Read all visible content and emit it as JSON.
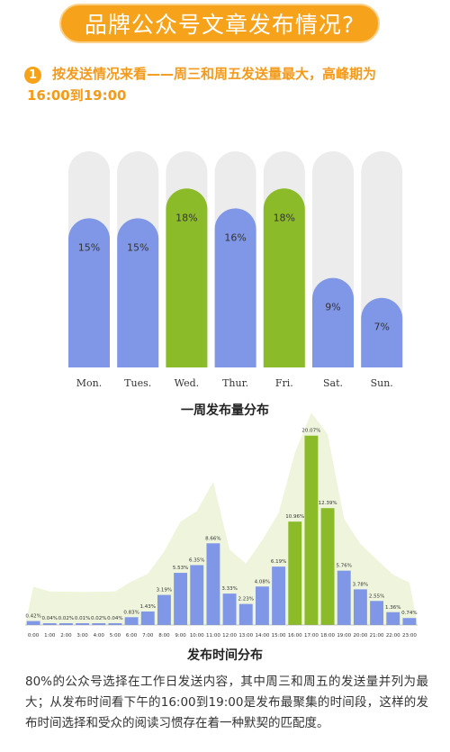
{
  "header": {
    "title": "品牌公众号文章发布情况?"
  },
  "section": {
    "number": "1",
    "line1": "按发送情况来看——周三和周五发送量最大，高峰期为",
    "line2": "16:00到19:00"
  },
  "colors": {
    "blue": "#7f97e6",
    "green": "#8cbb2a",
    "track": "#ececec",
    "area": "#eef5dc",
    "orange": "#f7a21b"
  },
  "chart_data": [
    {
      "type": "bar",
      "title": "一周发布量分布",
      "categories": [
        "Mon.",
        "Tues.",
        "Wed.",
        "Thur.",
        "Fri.",
        "Sat.",
        "Sun."
      ],
      "values": [
        15,
        15,
        18,
        16,
        18,
        9,
        7
      ],
      "labels": [
        "15%",
        "15%",
        "18%",
        "16%",
        "18%",
        "9%",
        "7%"
      ],
      "highlight": [
        "Wed.",
        "Fri."
      ],
      "ylim": [
        0,
        20
      ]
    },
    {
      "type": "bar",
      "title": "发布时间分布",
      "categories": [
        "0:00",
        "1:00",
        "2:00",
        "3:00",
        "4:00",
        "5:00",
        "6:00",
        "7:00",
        "8:00",
        "9:00",
        "10:00",
        "11:00",
        "12:00",
        "13:00",
        "14:00",
        "15:00",
        "16:00",
        "17:00",
        "18:00",
        "19:00",
        "20:00",
        "21:00",
        "22:00",
        "23:00"
      ],
      "values": [
        0.42,
        0.04,
        0.02,
        0.01,
        0.02,
        0.04,
        0.83,
        1.43,
        3.19,
        5.53,
        6.35,
        8.66,
        3.33,
        2.23,
        4.08,
        6.19,
        10.96,
        20.07,
        12.39,
        5.76,
        3.78,
        2.55,
        1.36,
        0.74
      ],
      "labels": [
        "0.42%",
        "0.04%",
        "0.02%",
        "0.01%",
        "0.02%",
        "0.04%",
        "0.83%",
        "1.43%",
        "3.19%",
        "5.53%",
        "6.35%",
        "8.66%",
        "3.33%",
        "2.23%",
        "4.08%",
        "6.19%",
        "10.96%",
        "20.07%",
        "12.39%",
        "5.76%",
        "3.78%",
        "2.55%",
        "1.36%",
        "0.74%"
      ],
      "highlight": [
        "16:00",
        "17:00",
        "18:00"
      ],
      "ylim": [
        0,
        21
      ]
    }
  ],
  "footer": {
    "text": "80%的公众号选择在工作日发送内容，其中周三和周五的发送量并列为最大；从发布时间看下午的16:00到19:00是发布最聚集的时间段，这样的发布时间选择和受众的阅读习惯存在着一种默契的匹配度。"
  }
}
